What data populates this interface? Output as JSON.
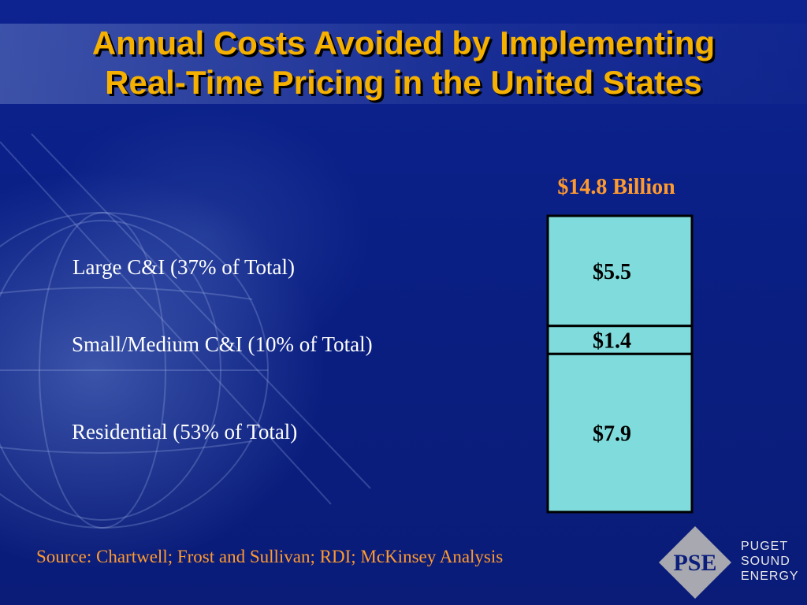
{
  "title_lines": [
    "Annual Costs Avoided by Implementing",
    "Real-Time Pricing in the United States"
  ],
  "source": "Source:  Chartwell; Frost and Sullivan; RDI; McKinsey Analysis",
  "logo": {
    "mark": "PSE",
    "text_lines": [
      "PUGET",
      "SOUND",
      "ENERGY"
    ]
  },
  "colors": {
    "background": "#0b1e7a",
    "title": "#f5b000",
    "accent_orange": "#ff9a2e",
    "bar_fill": "#80dcdc"
  },
  "chart_data": {
    "type": "bar",
    "stacked": true,
    "total_label": "$14.8 Billion",
    "total": 14.8,
    "categories": [
      "Large C&I (37% of Total)",
      "Small/Medium C&I (10% of Total)",
      "Residential (53% of Total)"
    ],
    "values": [
      5.5,
      1.4,
      7.9
    ],
    "value_labels": [
      "$5.5",
      "$1.4",
      "$7.9"
    ],
    "order": "top-to-bottom"
  }
}
